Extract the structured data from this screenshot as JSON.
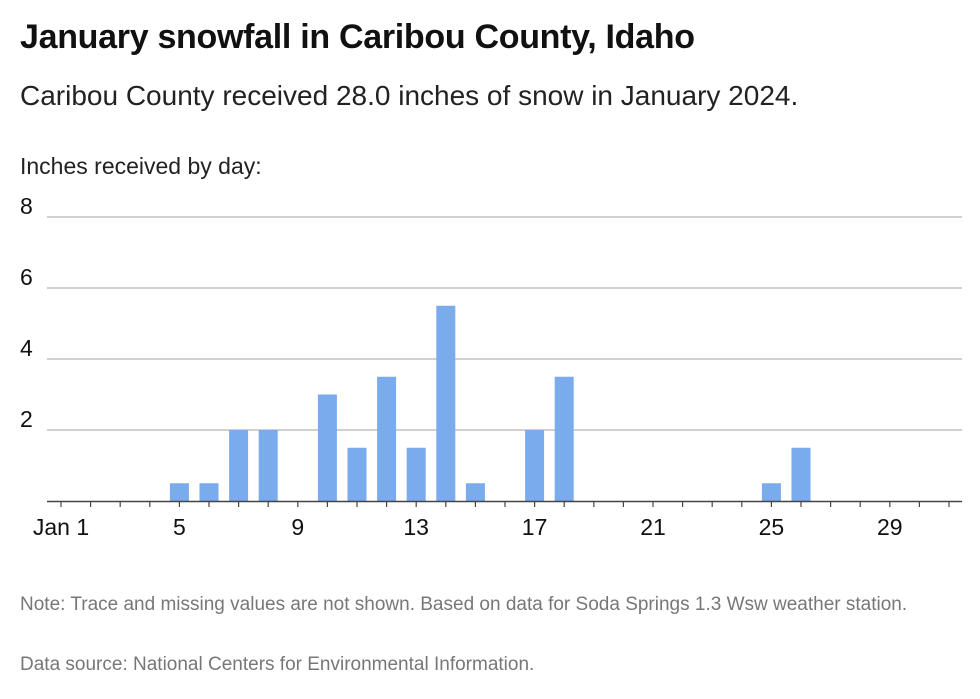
{
  "header": {
    "title": "January snowfall in Caribou County, Idaho",
    "subtitle": "Caribou County received 28.0 inches of snow in January 2024.",
    "chart_label": "Inches received by day:"
  },
  "footer": {
    "note": "Note: Trace and missing values are not shown. Based on data for Soda Springs 1.3 Wsw weather station.",
    "source": "Data source: National Centers for Environmental Information."
  },
  "colors": {
    "bar": "#7aabec",
    "grid": "#b5b5b5",
    "axis": "#444444"
  },
  "chart_data": {
    "type": "bar",
    "title": "January snowfall in Caribou County, Idaho",
    "ylabel": "Inches received by day:",
    "xlabel": "",
    "days": [
      1,
      2,
      3,
      4,
      5,
      6,
      7,
      8,
      9,
      10,
      11,
      12,
      13,
      14,
      15,
      16,
      17,
      18,
      19,
      20,
      21,
      22,
      23,
      24,
      25,
      26,
      27,
      28,
      29,
      30,
      31
    ],
    "values": [
      0,
      0,
      0,
      0,
      0.5,
      0.5,
      2,
      2,
      0,
      3,
      1.5,
      3.5,
      1.5,
      5.5,
      0.5,
      0,
      2,
      3.5,
      0,
      0,
      0,
      0,
      0,
      0,
      0.5,
      1.5,
      0,
      0,
      0,
      0,
      0
    ],
    "x_ticks": [
      {
        "day": 1,
        "label": "Jan 1"
      },
      {
        "day": 5,
        "label": "5"
      },
      {
        "day": 9,
        "label": "9"
      },
      {
        "day": 13,
        "label": "13"
      },
      {
        "day": 17,
        "label": "17"
      },
      {
        "day": 21,
        "label": "21"
      },
      {
        "day": 25,
        "label": "25"
      },
      {
        "day": 29,
        "label": "29"
      }
    ],
    "y_ticks": [
      2,
      4,
      6,
      8
    ],
    "ylim": [
      0,
      8
    ],
    "grid": true,
    "legend": "none"
  }
}
